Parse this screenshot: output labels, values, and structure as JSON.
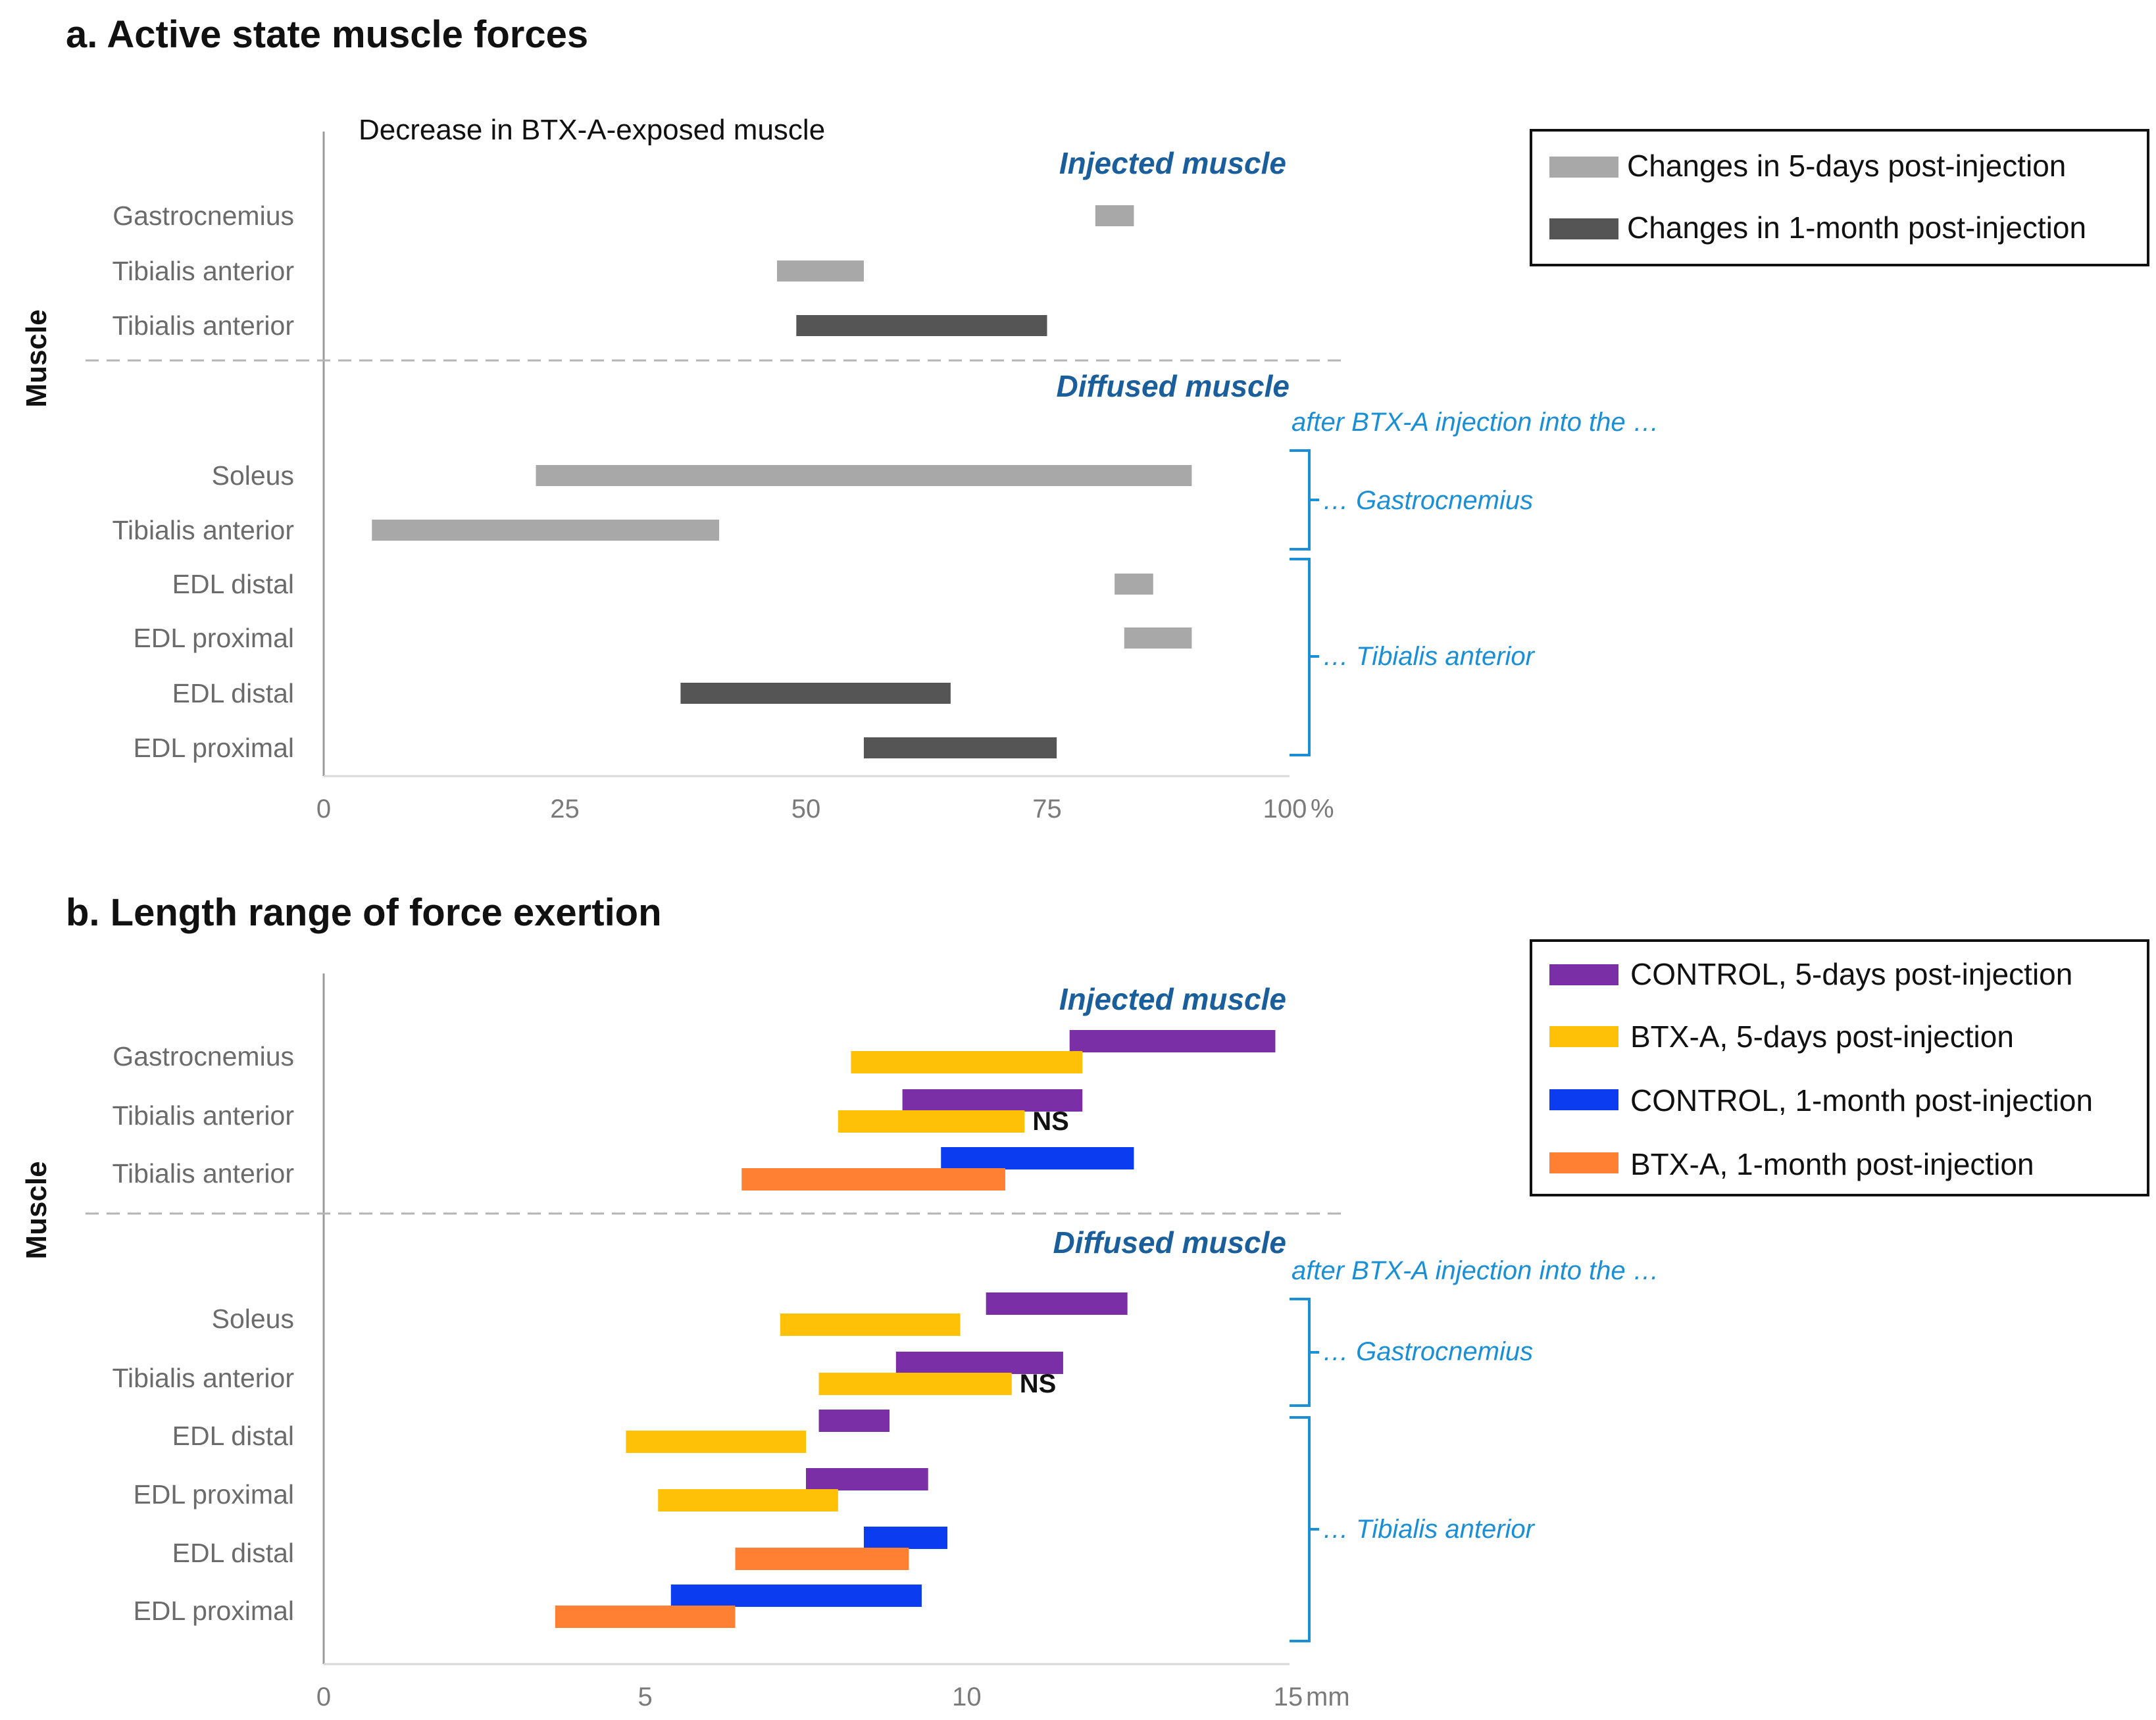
{
  "chart_data": [
    {
      "type": "bar",
      "subtype": "floating-range",
      "title": "a. Active state muscle forces",
      "annotation": "Decrease in BTX-A-exposed muscle",
      "ylabel": "Muscle",
      "x_unit_label": "%",
      "xlim": [
        0,
        100
      ],
      "xticks": [
        0,
        25,
        50,
        75,
        100
      ],
      "sections": {
        "injected": "Injected muscle",
        "diffused": "Diffused muscle"
      },
      "after_text": "after BTX-A injection into the …",
      "brackets": [
        "… Gastrocnemius",
        "… Tibialis anterior"
      ],
      "legend": [
        {
          "name": "Changes in 5-days post-injection",
          "color": "#a8a8a8"
        },
        {
          "name": "Changes in 1-month post-injection",
          "color": "#555555"
        }
      ],
      "categories": [
        "Gastrocnemius",
        "Tibialis anterior",
        "Tibialis anterior",
        "Soleus",
        "Tibialis anterior",
        "EDL distal",
        "EDL proximal",
        "EDL distal",
        "EDL proximal"
      ],
      "bars": [
        {
          "row": 0,
          "start": 80,
          "end": 84,
          "series": 0
        },
        {
          "row": 1,
          "start": 47,
          "end": 56,
          "series": 0
        },
        {
          "row": 2,
          "start": 49,
          "end": 75,
          "series": 1
        },
        {
          "row": 3,
          "start": 22,
          "end": 90,
          "series": 0
        },
        {
          "row": 4,
          "start": 5,
          "end": 41,
          "series": 0
        },
        {
          "row": 5,
          "start": 82,
          "end": 86,
          "series": 0
        },
        {
          "row": 6,
          "start": 83,
          "end": 90,
          "series": 0
        },
        {
          "row": 7,
          "start": 37,
          "end": 65,
          "series": 1
        },
        {
          "row": 8,
          "start": 56,
          "end": 76,
          "series": 1
        }
      ]
    },
    {
      "type": "bar",
      "subtype": "floating-range",
      "title": "b. Length range of force exertion",
      "ylabel": "Muscle",
      "x_unit_label": "mm",
      "xlim": [
        0,
        15
      ],
      "xticks": [
        0,
        5,
        10,
        15
      ],
      "sections": {
        "injected": "Injected muscle",
        "diffused": "Diffused muscle"
      },
      "after_text": "after BTX-A injection into the …",
      "brackets": [
        "… Gastrocnemius",
        "… Tibialis anterior"
      ],
      "ns_label": "NS",
      "legend": [
        {
          "name": "CONTROL, 5-days post-injection",
          "color": "#7b2fa6"
        },
        {
          "name": "BTX-A, 5-days post-injection",
          "color": "#ffc107"
        },
        {
          "name": "CONTROL, 1-month post-injection",
          "color": "#0b3cf0"
        },
        {
          "name": "BTX-A, 1-month post-injection",
          "color": "#ff8033"
        }
      ],
      "categories": [
        "Gastrocnemius",
        "Tibialis anterior",
        "Tibialis anterior",
        "Soleus",
        "Tibialis anterior",
        "EDL distal",
        "EDL proximal",
        "EDL distal",
        "EDL proximal"
      ],
      "bars": [
        {
          "row": 0,
          "series": 0,
          "start": 11.6,
          "end": 14.8
        },
        {
          "row": 0,
          "series": 1,
          "start": 8.2,
          "end": 11.8
        },
        {
          "row": 1,
          "series": 0,
          "start": 9.0,
          "end": 11.8
        },
        {
          "row": 1,
          "series": 1,
          "start": 8.0,
          "end": 10.9
        },
        {
          "row": 2,
          "series": 2,
          "start": 9.6,
          "end": 12.6
        },
        {
          "row": 2,
          "series": 3,
          "start": 6.5,
          "end": 10.6
        },
        {
          "row": 3,
          "series": 0,
          "start": 10.3,
          "end": 12.5
        },
        {
          "row": 3,
          "series": 1,
          "start": 7.1,
          "end": 9.9
        },
        {
          "row": 4,
          "series": 0,
          "start": 8.9,
          "end": 11.5
        },
        {
          "row": 4,
          "series": 1,
          "start": 7.7,
          "end": 10.7
        },
        {
          "row": 5,
          "series": 0,
          "start": 7.7,
          "end": 8.8
        },
        {
          "row": 5,
          "series": 1,
          "start": 4.7,
          "end": 7.5
        },
        {
          "row": 6,
          "series": 0,
          "start": 7.5,
          "end": 9.4
        },
        {
          "row": 6,
          "series": 1,
          "start": 5.2,
          "end": 8.0
        },
        {
          "row": 7,
          "series": 2,
          "start": 8.4,
          "end": 9.7
        },
        {
          "row": 7,
          "series": 3,
          "start": 6.4,
          "end": 9.1
        },
        {
          "row": 8,
          "series": 2,
          "start": 5.4,
          "end": 9.3
        },
        {
          "row": 8,
          "series": 3,
          "start": 3.6,
          "end": 6.4
        }
      ],
      "ns_marks": [
        1,
        4
      ]
    }
  ]
}
